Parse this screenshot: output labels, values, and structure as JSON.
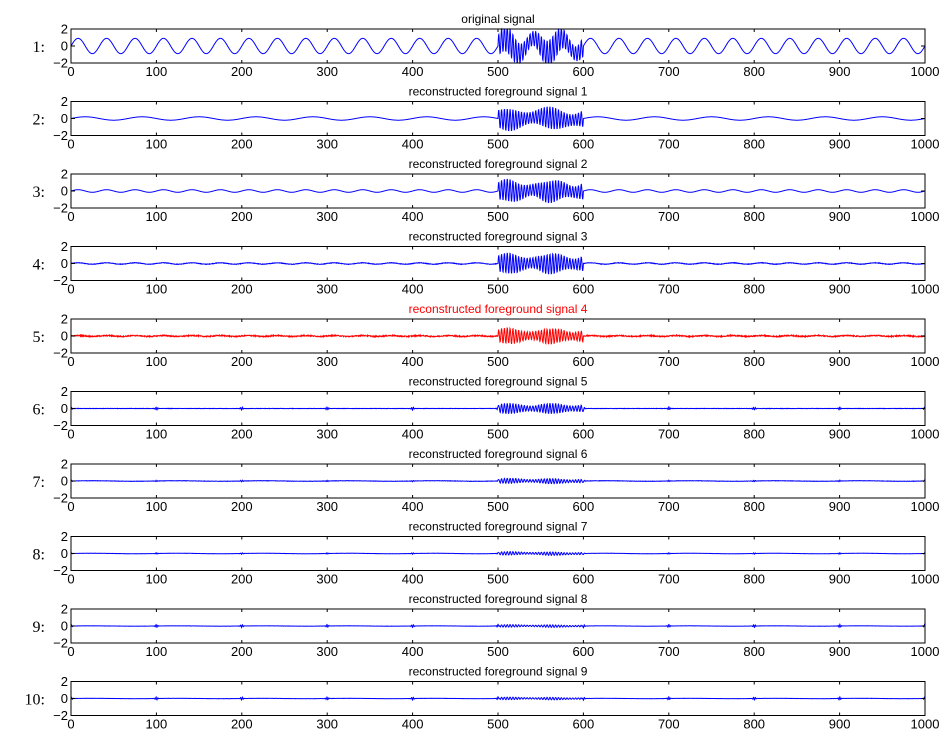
{
  "chart_data": {
    "type": "line",
    "subplots": [
      {
        "row_label": "1:",
        "title": "original signal",
        "color": "#0000ff",
        "series": {
          "bg_amp": 0.9,
          "bg_cycles": 30,
          "burst_amp": 1.6,
          "noise_amp": 0.0,
          "spike_amp": 0.0
        }
      },
      {
        "row_label": "2:",
        "title": "reconstructed foreground signal 1",
        "color": "#0000ff",
        "series": {
          "bg_amp": 0.2,
          "bg_cycles": 15,
          "burst_amp": 1.3,
          "noise_amp": 0.0,
          "spike_amp": 0.0
        }
      },
      {
        "row_label": "3:",
        "title": "reconstructed foreground signal 2",
        "color": "#0000ff",
        "series": {
          "bg_amp": 0.15,
          "bg_cycles": 30,
          "burst_amp": 1.3,
          "noise_amp": 0.0,
          "spike_amp": 0.0
        }
      },
      {
        "row_label": "4:",
        "title": "reconstructed foreground signal 3",
        "color": "#0000ff",
        "series": {
          "bg_amp": 0.08,
          "bg_cycles": 30,
          "burst_amp": 1.2,
          "noise_amp": 0.03,
          "spike_amp": 0.0
        }
      },
      {
        "row_label": "5:",
        "title": "reconstructed foreground signal 4",
        "color": "#ff0000",
        "series": {
          "bg_amp": 0.05,
          "bg_cycles": 30,
          "burst_amp": 0.9,
          "noise_amp": 0.06,
          "spike_amp": 0.0
        }
      },
      {
        "row_label": "6:",
        "title": "reconstructed foreground signal 5",
        "color": "#0000ff",
        "series": {
          "bg_amp": 0.0,
          "bg_cycles": 30,
          "burst_amp": 0.6,
          "noise_amp": 0.02,
          "spike_amp": 0.2
        }
      },
      {
        "row_label": "7:",
        "title": "reconstructed foreground signal 6",
        "color": "#0000ff",
        "series": {
          "bg_amp": 0.03,
          "bg_cycles": 10,
          "burst_amp": 0.3,
          "noise_amp": 0.02,
          "spike_amp": 0.1
        }
      },
      {
        "row_label": "8:",
        "title": "reconstructed foreground signal 7",
        "color": "#0000ff",
        "series": {
          "bg_amp": 0.03,
          "bg_cycles": 10,
          "burst_amp": 0.2,
          "noise_amp": 0.01,
          "spike_amp": 0.1
        }
      },
      {
        "row_label": "9:",
        "title": "reconstructed foreground signal 8",
        "color": "#0000ff",
        "series": {
          "bg_amp": 0.02,
          "bg_cycles": 10,
          "burst_amp": 0.15,
          "noise_amp": 0.01,
          "spike_amp": 0.2
        }
      },
      {
        "row_label": "10:",
        "title": "reconstructed foreground signal 9",
        "color": "#0000ff",
        "series": {
          "bg_amp": 0.02,
          "bg_cycles": 10,
          "burst_amp": 0.15,
          "noise_amp": 0.01,
          "spike_amp": 0.2
        }
      }
    ],
    "burst_range": [
      500,
      600
    ],
    "x_range": [
      0,
      1000
    ],
    "y_range": [
      -2,
      2
    ],
    "xticks": [
      0,
      100,
      200,
      300,
      400,
      500,
      600,
      700,
      800,
      900,
      1000
    ],
    "yticks": [
      2,
      0,
      -2
    ],
    "ytick_labels": [
      "2",
      "0",
      "−2"
    ],
    "grid": false
  }
}
